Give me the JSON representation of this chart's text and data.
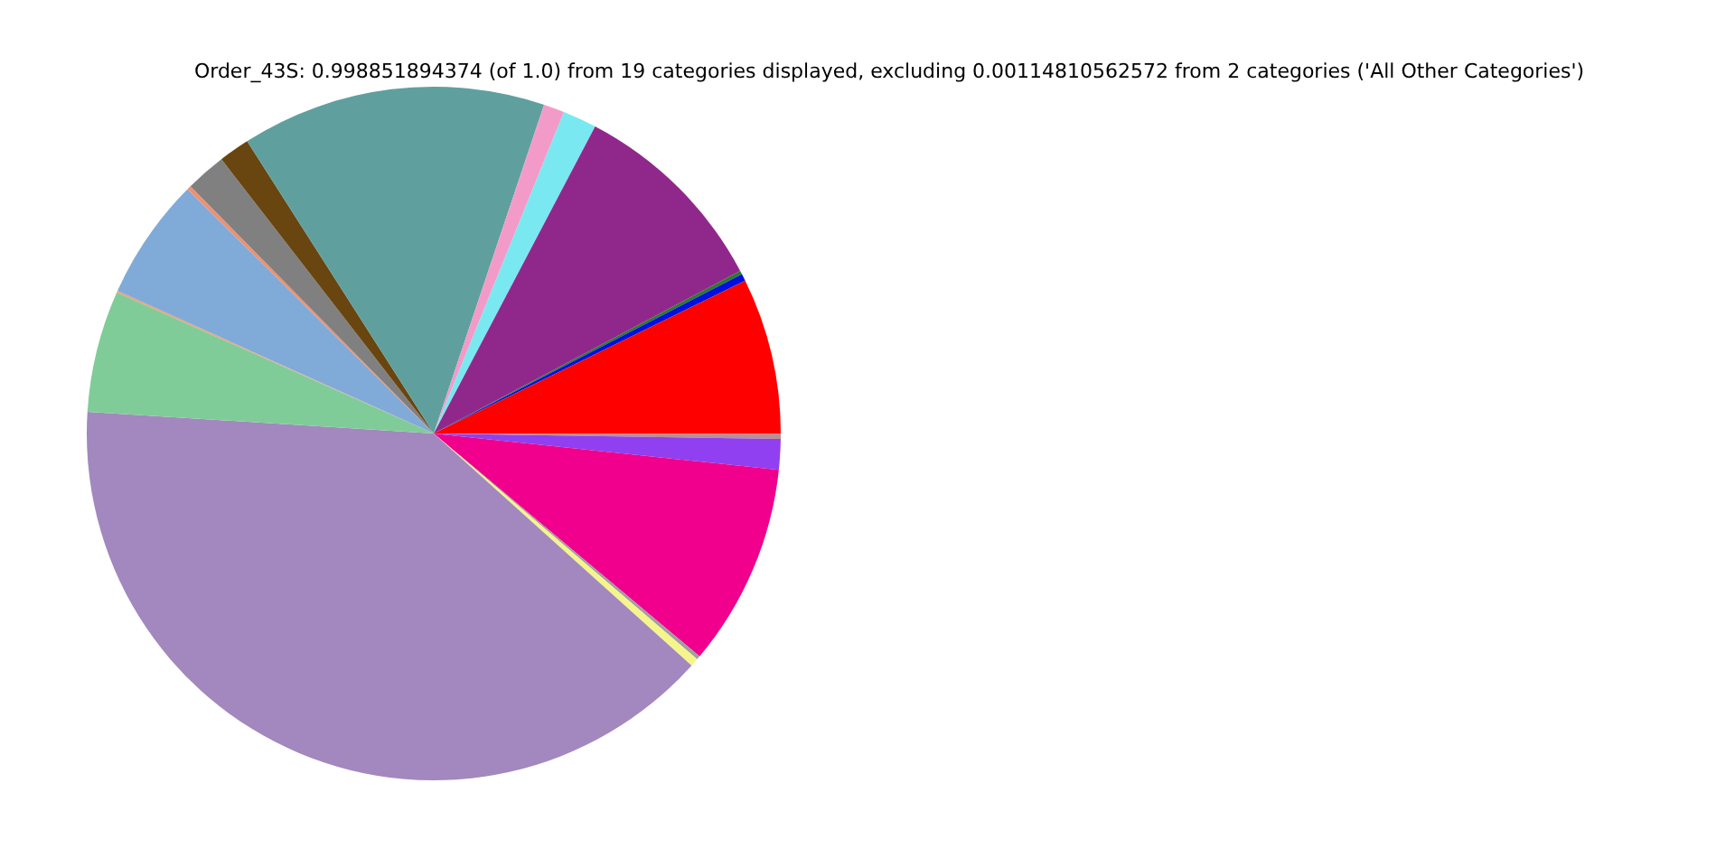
{
  "chart_data": {
    "type": "pie",
    "title": "Order_43S: 0.998851894374 (of 1.0) from 19 categories displayed, excluding 0.00114810562572 from 2 categories ('All Other Categories')",
    "categories": [
      null,
      null,
      null,
      null,
      null,
      null,
      null,
      null,
      null,
      null,
      null,
      null,
      null,
      null,
      null,
      null,
      null,
      null,
      null
    ],
    "values": [
      0.25,
      1.42,
      9.44,
      0.17,
      0.39,
      39.33,
      5.67,
      0.08,
      5.69,
      0.19,
      1.89,
      1.44,
      14.19,
      0.97,
      1.58,
      9.53,
      0.17,
      0.33,
      7.27
    ],
    "colors": [
      "#bc8f8f",
      "#9040f0",
      "#f0008c",
      "#a0a0a0",
      "#f5f58c",
      "#a288be",
      "#80cc99",
      "#f0a070",
      "#80aad8",
      "#f09070",
      "#808080",
      "#694510",
      "#5fa09f",
      "#f29bc8",
      "#7ae8f0",
      "#90288c",
      "#2a7a2a",
      "#0010e0",
      "#ff0000"
    ]
  }
}
